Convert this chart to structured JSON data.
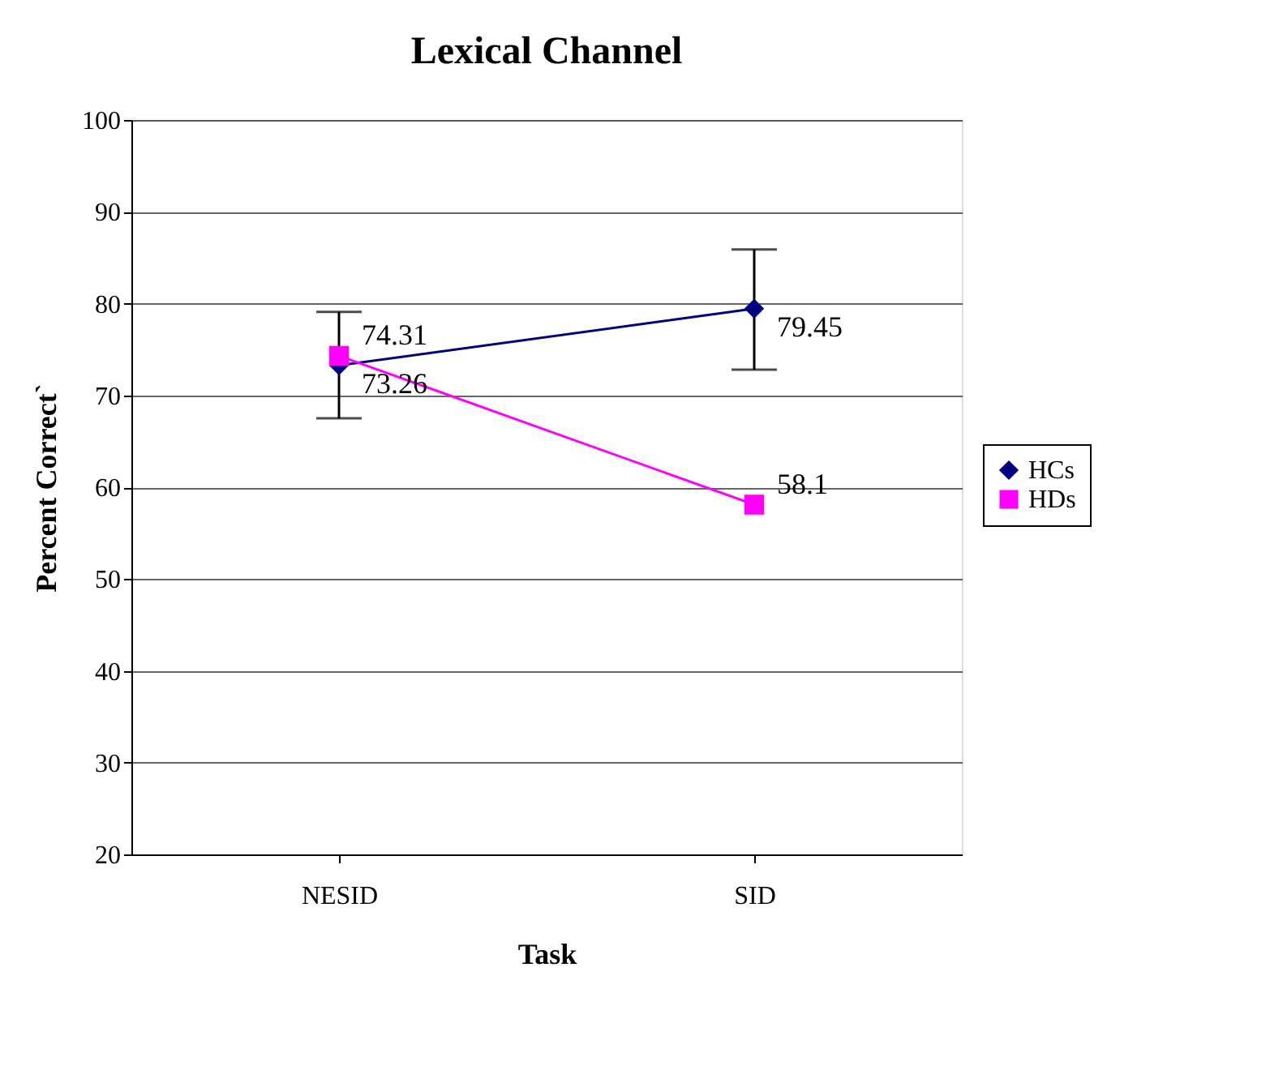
{
  "chart_data": {
    "type": "line",
    "title": "Lexical Channel",
    "xlabel": "Task",
    "ylabel": "Percent Correct`",
    "categories": [
      "NESID",
      "SID"
    ],
    "series": [
      {
        "name": "HCs",
        "color": "#000080",
        "marker": "diamond",
        "values": [
          73.26,
          79.45
        ],
        "errors": [
          [
            67.5,
            79.1
          ],
          [
            72.8,
            85.9
          ]
        ]
      },
      {
        "name": "HDs",
        "color": "#ff00ff",
        "marker": "square",
        "values": [
          74.31,
          58.1
        ]
      }
    ],
    "ylim": [
      20,
      100
    ],
    "yticks": [
      20,
      30,
      40,
      50,
      60,
      70,
      80,
      90,
      100
    ],
    "grid": "y",
    "legend": "right",
    "data_labels": true
  }
}
